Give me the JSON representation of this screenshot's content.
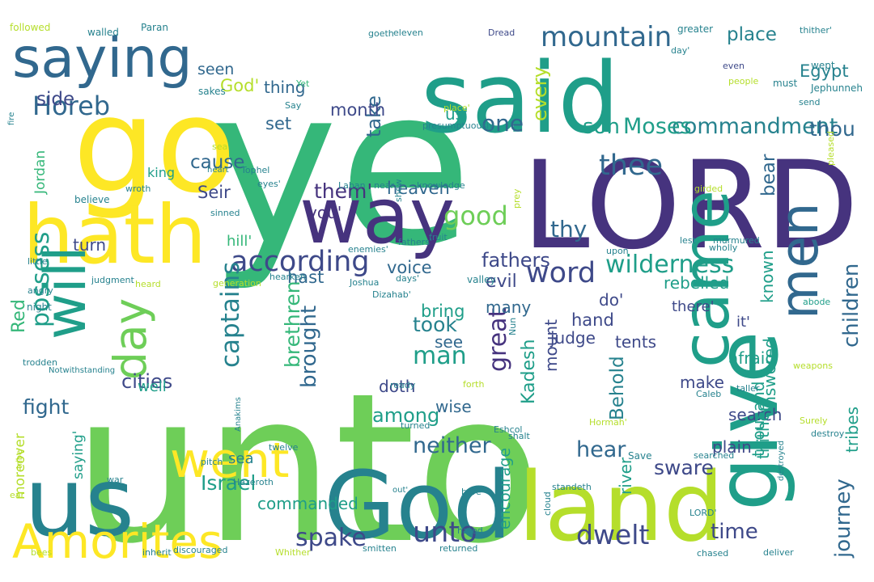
{
  "palette": {
    "dark_purple": "#46337e",
    "indigo": "#3e4989",
    "blue": "#31688e",
    "teal_blue": "#26828e",
    "teal": "#1f9e89",
    "green": "#35b779",
    "light_green": "#6ece58",
    "lime": "#b5de2b",
    "yellow": "#fde725",
    "background": "#ffffff"
  },
  "words": [
    {
      "text": "ye",
      "color": "green"
    },
    {
      "text": "unto",
      "color": "light_green"
    },
    {
      "text": "LORD",
      "color": "dark_purple"
    },
    {
      "text": "go",
      "color": "yellow"
    },
    {
      "text": "said",
      "color": "teal"
    },
    {
      "text": "God",
      "color": "teal_blue"
    },
    {
      "text": "land",
      "color": "lime"
    },
    {
      "text": "us",
      "color": "teal_blue"
    },
    {
      "text": "hath",
      "color": "yellow"
    },
    {
      "text": "give",
      "color": "teal"
    },
    {
      "text": "way",
      "color": "dark_purple"
    },
    {
      "text": "saying",
      "color": "blue"
    },
    {
      "text": "came",
      "color": "teal"
    },
    {
      "text": "men",
      "color": "blue"
    },
    {
      "text": "went",
      "color": "yellow"
    },
    {
      "text": "Amorites",
      "color": "yellow"
    },
    {
      "text": "day",
      "color": "light_green"
    },
    {
      "text": "will",
      "color": "teal"
    },
    {
      "text": "according",
      "color": "indigo"
    },
    {
      "text": "mountain",
      "color": "blue"
    },
    {
      "text": "commandment",
      "color": "teal_blue"
    },
    {
      "text": "Moses",
      "color": "teal"
    },
    {
      "text": "wilderness",
      "color": "teal"
    },
    {
      "text": "spake",
      "color": "indigo"
    },
    {
      "text": "unto",
      "color": "indigo"
    },
    {
      "text": "dwelt",
      "color": "indigo"
    },
    {
      "text": "Horeb",
      "color": "blue"
    },
    {
      "text": "good",
      "color": "light_green"
    },
    {
      "text": "son",
      "color": "teal"
    },
    {
      "text": "one",
      "color": "blue"
    },
    {
      "text": "thee",
      "color": "blue"
    },
    {
      "text": "word",
      "color": "indigo"
    },
    {
      "text": "great",
      "color": "dark_purple"
    },
    {
      "text": "captains",
      "color": "teal_blue"
    },
    {
      "text": "brought",
      "color": "blue"
    },
    {
      "text": "children",
      "color": "blue"
    },
    {
      "text": "journey",
      "color": "blue"
    },
    {
      "text": "Israel",
      "color": "teal"
    },
    {
      "text": "fight",
      "color": "blue"
    },
    {
      "text": "Kadesh",
      "color": "teal"
    },
    {
      "text": "time",
      "color": "indigo"
    },
    {
      "text": "hear",
      "color": "blue"
    },
    {
      "text": "neither",
      "color": "blue"
    },
    {
      "text": "took",
      "color": "teal_blue"
    },
    {
      "text": "sware",
      "color": "indigo"
    },
    {
      "text": "possess",
      "color": "teal"
    },
    {
      "text": "them'",
      "color": "dark_purple"
    },
    {
      "text": "cause",
      "color": "blue"
    },
    {
      "text": "thou",
      "color": "blue"
    },
    {
      "text": "thy",
      "color": "blue"
    },
    {
      "text": "man",
      "color": "teal"
    },
    {
      "text": "fathers",
      "color": "indigo"
    },
    {
      "text": "Behold",
      "color": "teal_blue"
    },
    {
      "text": "take",
      "color": "blue"
    },
    {
      "text": "place",
      "color": "teal_blue"
    },
    {
      "text": "Egypt",
      "color": "teal_blue"
    },
    {
      "text": "every",
      "color": "lime"
    },
    {
      "text": "commanded",
      "color": "teal"
    },
    {
      "text": "brethren",
      "color": "green"
    },
    {
      "text": "among",
      "color": "teal"
    },
    {
      "text": "cities",
      "color": "indigo"
    },
    {
      "text": "side",
      "color": "indigo"
    },
    {
      "text": "bear",
      "color": "blue"
    },
    {
      "text": "thing",
      "color": "blue"
    },
    {
      "text": "seen",
      "color": "blue"
    },
    {
      "text": "God'",
      "color": "lime"
    },
    {
      "text": "Seir",
      "color": "indigo"
    },
    {
      "text": "you'",
      "color": "dark_purple"
    },
    {
      "text": "us'",
      "color": "teal"
    },
    {
      "text": "set",
      "color": "blue"
    },
    {
      "text": "month",
      "color": "indigo"
    },
    {
      "text": "wise",
      "color": "blue"
    },
    {
      "text": "see",
      "color": "blue"
    },
    {
      "text": "heaven",
      "color": "blue"
    },
    {
      "text": "evil",
      "color": "indigo"
    },
    {
      "text": "hast",
      "color": "blue"
    },
    {
      "text": "hill'",
      "color": "green"
    },
    {
      "text": "rebelled",
      "color": "teal"
    },
    {
      "text": "answered",
      "color": "teal"
    },
    {
      "text": "voice",
      "color": "blue"
    },
    {
      "text": "many",
      "color": "blue"
    },
    {
      "text": "turn",
      "color": "indigo"
    },
    {
      "text": "there'",
      "color": "indigo"
    },
    {
      "text": "do'",
      "color": "indigo"
    },
    {
      "text": "search",
      "color": "indigo"
    },
    {
      "text": "make",
      "color": "indigo"
    },
    {
      "text": "tents",
      "color": "indigo"
    },
    {
      "text": "it'",
      "color": "indigo"
    },
    {
      "text": "plain",
      "color": "indigo"
    },
    {
      "text": "doth",
      "color": "indigo"
    },
    {
      "text": "bring",
      "color": "teal"
    },
    {
      "text": "river",
      "color": "teal"
    },
    {
      "text": "thousand",
      "color": "teal"
    },
    {
      "text": "thither",
      "color": "teal"
    },
    {
      "text": "tribes",
      "color": "teal"
    },
    {
      "text": "known",
      "color": "teal"
    },
    {
      "text": "mount",
      "color": "indigo"
    },
    {
      "text": "hand",
      "color": "indigo"
    },
    {
      "text": "judge",
      "color": "indigo"
    },
    {
      "text": "afraid",
      "color": "teal"
    },
    {
      "text": "Red",
      "color": "green"
    },
    {
      "text": "sea",
      "color": "teal_blue"
    },
    {
      "text": "well",
      "color": "teal"
    },
    {
      "text": "king",
      "color": "teal"
    },
    {
      "text": "saying'",
      "color": "teal"
    },
    {
      "text": "moreover",
      "color": "lime"
    },
    {
      "text": "Jordan",
      "color": "green"
    },
    {
      "text": "encourage",
      "color": "teal"
    },
    {
      "text": "followed",
      "color": "lime"
    },
    {
      "text": "Paran",
      "color": "teal_blue"
    },
    {
      "text": "walled",
      "color": "teal_blue"
    },
    {
      "text": "night",
      "color": "teal_blue"
    },
    {
      "text": "sakes",
      "color": "teal_blue"
    },
    {
      "text": "Yet",
      "color": "green"
    },
    {
      "text": "Say",
      "color": "teal_blue"
    },
    {
      "text": "goeth",
      "color": "teal_blue"
    },
    {
      "text": "eleven",
      "color": "teal_blue"
    },
    {
      "text": "Dread",
      "color": "indigo"
    },
    {
      "text": "greater",
      "color": "teal_blue"
    },
    {
      "text": "thither'",
      "color": "teal_blue"
    },
    {
      "text": "even",
      "color": "indigo"
    },
    {
      "text": "day'",
      "color": "teal_blue"
    },
    {
      "text": "people",
      "color": "lime"
    },
    {
      "text": "wept",
      "color": "teal_blue"
    },
    {
      "text": "Jephunneh",
      "color": "teal_blue"
    },
    {
      "text": "must",
      "color": "teal_blue"
    },
    {
      "text": "send",
      "color": "teal_blue"
    },
    {
      "text": "place'",
      "color": "lime"
    },
    {
      "text": "presumptuously",
      "color": "teal_blue"
    },
    {
      "text": "shew",
      "color": "teal_blue"
    },
    {
      "text": "fire",
      "color": "teal_blue"
    },
    {
      "text": "sea",
      "color": "lime"
    },
    {
      "text": "heart",
      "color": "teal_blue"
    },
    {
      "text": "Tophel",
      "color": "teal_blue"
    },
    {
      "text": "believe",
      "color": "teal_blue"
    },
    {
      "text": "wroth",
      "color": "teal_blue"
    },
    {
      "text": "eyes'",
      "color": "teal_blue"
    },
    {
      "text": "Laban",
      "color": "teal_blue"
    },
    {
      "text": "near",
      "color": "teal_blue"
    },
    {
      "text": "knowledge",
      "color": "teal_blue"
    },
    {
      "text": "prey",
      "color": "lime"
    },
    {
      "text": "girded",
      "color": "lime"
    },
    {
      "text": "pleased",
      "color": "lime"
    },
    {
      "text": "sinned",
      "color": "teal_blue"
    },
    {
      "text": "fruit",
      "color": "teal_blue"
    },
    {
      "text": "upon",
      "color": "teal_blue"
    },
    {
      "text": "lest",
      "color": "teal_blue"
    },
    {
      "text": "murmured",
      "color": "teal_blue"
    },
    {
      "text": "fathers'",
      "color": "teal_blue"
    },
    {
      "text": "enemies'",
      "color": "teal_blue"
    },
    {
      "text": "wholly",
      "color": "teal_blue"
    },
    {
      "text": "little",
      "color": "teal_blue"
    },
    {
      "text": "judgment",
      "color": "teal_blue"
    },
    {
      "text": "generation",
      "color": "lime"
    },
    {
      "text": "hearken",
      "color": "teal_blue"
    },
    {
      "text": "Joshua",
      "color": "teal_blue"
    },
    {
      "text": "days'",
      "color": "teal_blue"
    },
    {
      "text": "valley",
      "color": "teal_blue"
    },
    {
      "text": "angry",
      "color": "teal_blue"
    },
    {
      "text": "heard",
      "color": "lime"
    },
    {
      "text": "Dizahab'",
      "color": "teal_blue"
    },
    {
      "text": "Nun",
      "color": "teal_blue"
    },
    {
      "text": "abode",
      "color": "teal"
    },
    {
      "text": "trodden",
      "color": "teal_blue"
    },
    {
      "text": "Notwithstanding",
      "color": "teal_blue"
    },
    {
      "text": "Anakims",
      "color": "teal_blue"
    },
    {
      "text": "ready",
      "color": "teal_blue"
    },
    {
      "text": "forth",
      "color": "lime"
    },
    {
      "text": "weapons",
      "color": "lime"
    },
    {
      "text": "taller",
      "color": "teal_blue"
    },
    {
      "text": "Caleb",
      "color": "teal_blue"
    },
    {
      "text": "Surely",
      "color": "lime"
    },
    {
      "text": "destroy",
      "color": "teal_blue"
    },
    {
      "text": "Eshcol",
      "color": "teal_blue"
    },
    {
      "text": "turned",
      "color": "teal_blue"
    },
    {
      "text": "Hormah'",
      "color": "lime"
    },
    {
      "text": "shalt",
      "color": "teal_blue"
    },
    {
      "text": "tribe'",
      "color": "lime"
    },
    {
      "text": "twelve",
      "color": "teal_blue"
    },
    {
      "text": "war",
      "color": "teal_blue"
    },
    {
      "text": "pitch",
      "color": "teal_blue"
    },
    {
      "text": "Hazeroth",
      "color": "teal_blue"
    },
    {
      "text": "Save",
      "color": "teal_blue"
    },
    {
      "text": "searched",
      "color": "teal_blue"
    },
    {
      "text": "destroyed",
      "color": "teal_blue"
    },
    {
      "text": "cloud",
      "color": "teal_blue"
    },
    {
      "text": "standeth",
      "color": "teal_blue"
    },
    {
      "text": "ear",
      "color": "lime"
    },
    {
      "text": "out'",
      "color": "teal_blue"
    },
    {
      "text": "bare",
      "color": "teal_blue"
    },
    {
      "text": "hated",
      "color": "teal_blue"
    },
    {
      "text": "LORD'",
      "color": "teal_blue"
    },
    {
      "text": "bees",
      "color": "lime"
    },
    {
      "text": "inherit",
      "color": "teal_blue"
    },
    {
      "text": "discouraged",
      "color": "teal_blue"
    },
    {
      "text": "Whither",
      "color": "lime"
    },
    {
      "text": "smitten",
      "color": "teal_blue"
    },
    {
      "text": "returned",
      "color": "teal_blue"
    },
    {
      "text": "chased",
      "color": "teal_blue"
    },
    {
      "text": "deliver",
      "color": "teal_blue"
    }
  ]
}
